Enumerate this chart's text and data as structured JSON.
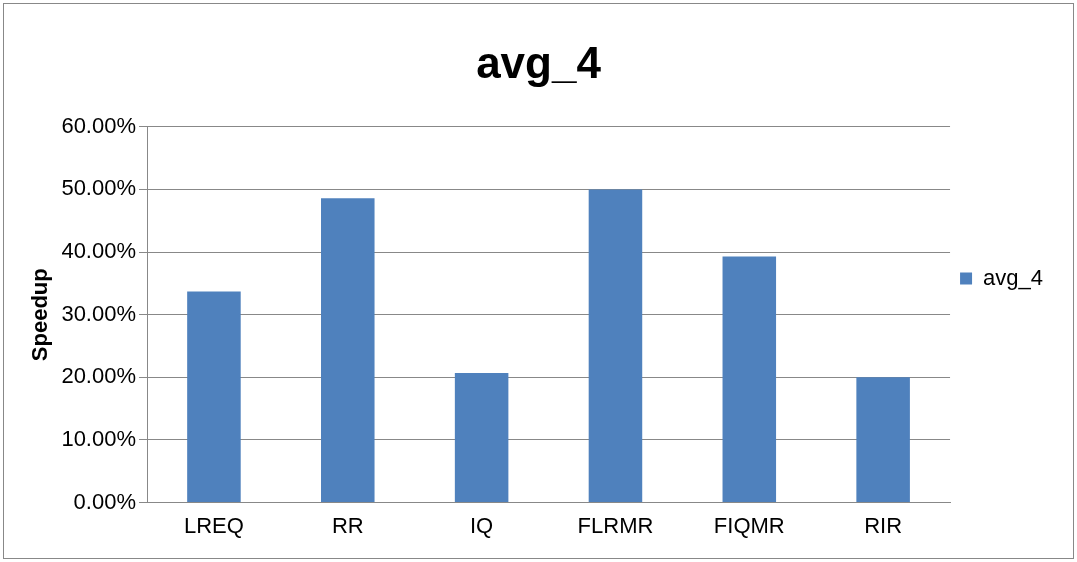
{
  "chart_data": {
    "type": "bar",
    "title": "avg_4",
    "ylabel": "Speedup",
    "categories": [
      "LREQ",
      "RR",
      "IQ",
      "FLRMR",
      "FIQMR",
      "RIR"
    ],
    "series": [
      {
        "name": "avg_4",
        "color": "#4f81bd",
        "values": [
          33.7,
          48.6,
          20.7,
          50.0,
          39.3,
          20.0
        ]
      }
    ],
    "ylim": [
      0,
      60
    ],
    "yticks": [
      {
        "value": 0,
        "label": "0.00%"
      },
      {
        "value": 10,
        "label": "10.00%"
      },
      {
        "value": 20,
        "label": "20.00%"
      },
      {
        "value": 30,
        "label": "30.00%"
      },
      {
        "value": 40,
        "label": "40.00%"
      },
      {
        "value": 50,
        "label": "50.00%"
      },
      {
        "value": 60,
        "label": "60.00%"
      }
    ],
    "grid": "y",
    "legend": "right"
  }
}
